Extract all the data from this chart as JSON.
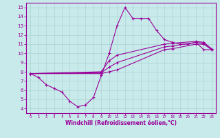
{
  "xlabel": "Windchill (Refroidissement éolien,°C)",
  "bg_color": "#c8eaea",
  "line_color": "#990099",
  "grid_color": "#aad4d4",
  "xlim": [
    -0.5,
    23.5
  ],
  "ylim": [
    3.5,
    15.5
  ],
  "xticks": [
    0,
    1,
    2,
    3,
    4,
    5,
    6,
    7,
    8,
    9,
    10,
    11,
    12,
    13,
    14,
    15,
    16,
    17,
    18,
    19,
    20,
    21,
    22,
    23
  ],
  "yticks": [
    4,
    5,
    6,
    7,
    8,
    9,
    10,
    11,
    12,
    13,
    14,
    15
  ],
  "series1_x": [
    0,
    1,
    2,
    3,
    4,
    5,
    6,
    7,
    8,
    9,
    10,
    11,
    12,
    13,
    14,
    15,
    16,
    17,
    18,
    19,
    20,
    21,
    22,
    23
  ],
  "series1_y": [
    7.8,
    7.4,
    6.6,
    6.2,
    5.8,
    4.8,
    4.2,
    4.4,
    5.2,
    7.6,
    10.0,
    13.0,
    15.0,
    13.8,
    13.8,
    13.8,
    12.5,
    11.5,
    11.2,
    11.0,
    11.0,
    11.2,
    10.4,
    10.4
  ],
  "series2_x": [
    0,
    9,
    10,
    11,
    17,
    18,
    21,
    22,
    23
  ],
  "series2_y": [
    7.8,
    7.8,
    8.0,
    8.2,
    10.4,
    10.5,
    11.0,
    11.0,
    10.4
  ],
  "series3_x": [
    0,
    9,
    10,
    11,
    17,
    18,
    21,
    22,
    23
  ],
  "series3_y": [
    7.8,
    7.9,
    8.5,
    9.0,
    10.7,
    10.8,
    11.2,
    11.1,
    10.4
  ],
  "series4_x": [
    0,
    9,
    10,
    11,
    17,
    18,
    21,
    22,
    23
  ],
  "series4_y": [
    7.8,
    8.0,
    9.2,
    9.8,
    11.0,
    11.1,
    11.3,
    11.2,
    10.5
  ]
}
